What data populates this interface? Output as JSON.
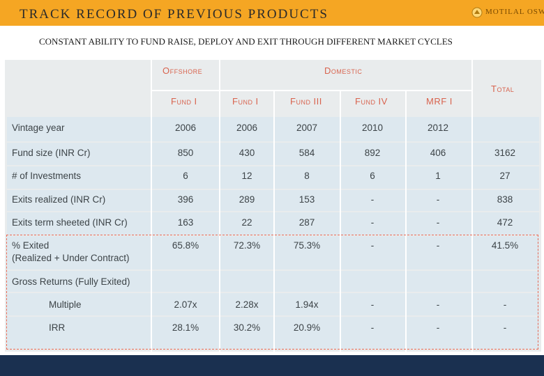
{
  "header": {
    "title": "TRACK RECORD OF PREVIOUS PRODUCTS",
    "subtitle": "CONSTANT ABILITY TO FUND RAISE, DEPLOY AND EXIT THROUGH DIFFERENT MARKET CYCLES",
    "logo_text": "MOTILAL OSWAL"
  },
  "table": {
    "group_headers": {
      "offshore": "Offshore",
      "domestic": "Domestic",
      "total": "Total"
    },
    "columns": [
      "Fund I",
      "Fund I",
      "Fund III",
      "Fund IV",
      "MRF I"
    ],
    "rows": [
      {
        "label": "Vintage year",
        "values": [
          "2006",
          "2006",
          "2007",
          "2010",
          "2012",
          ""
        ]
      },
      {
        "label": "Fund size (INR Cr)",
        "values": [
          "850",
          "430",
          "584",
          "892",
          "406",
          "3162"
        ]
      },
      {
        "label": "# of Investments",
        "values": [
          "6",
          "12",
          "8",
          "6",
          "1",
          "27"
        ]
      },
      {
        "label": "Exits realized (INR Cr)",
        "values": [
          "396",
          "289",
          "153",
          "-",
          "-",
          "838"
        ]
      },
      {
        "label": "Exits term sheeted (INR Cr)",
        "values": [
          "163",
          "22",
          "287",
          "-",
          "-",
          "472"
        ]
      },
      {
        "label": "% Exited",
        "label2": "(Realized + Under Contract)",
        "values": [
          "65.8%",
          "72.3%",
          "75.3%",
          "-",
          "-",
          "41.5%"
        ]
      },
      {
        "label": "Gross Returns (Fully Exited)",
        "values": [
          "",
          "",
          "",
          "",
          "",
          ""
        ]
      },
      {
        "label": "Multiple",
        "values": [
          "2.07x",
          "2.28x",
          "1.94x",
          "-",
          "-",
          "-"
        ]
      },
      {
        "label": "IRR",
        "values": [
          "28.1%",
          "30.2%",
          "20.9%",
          "-",
          "-",
          "-"
        ]
      }
    ]
  },
  "colors": {
    "accent": "#f5a623",
    "header_text": "#d8634e",
    "band": "#dde8ef",
    "footer": "#1a3050",
    "dash": "#e86a55"
  }
}
